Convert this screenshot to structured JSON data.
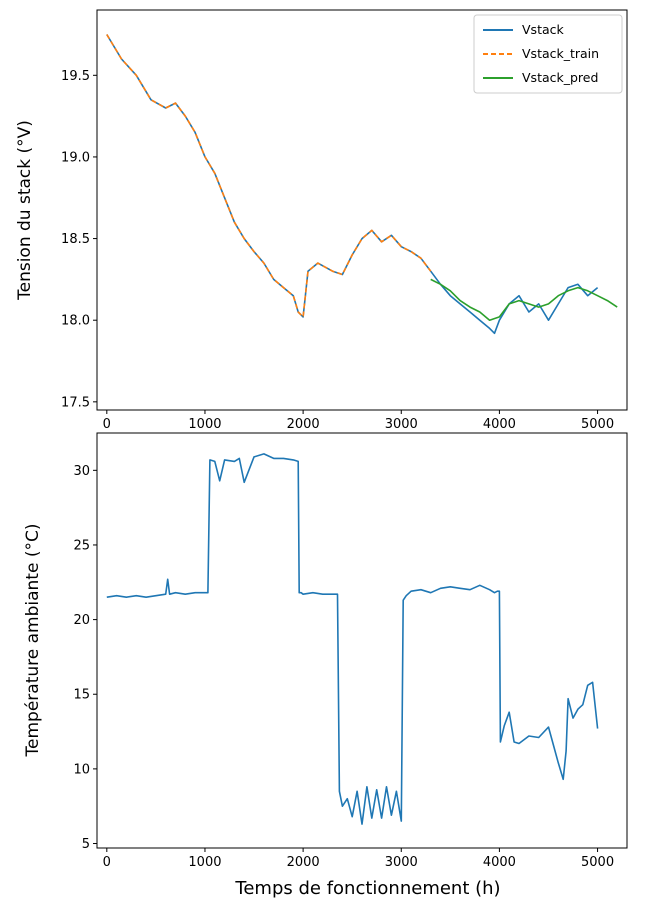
{
  "chart_data": [
    {
      "type": "line",
      "title": "",
      "xlabel": "",
      "ylabel": "Tension du stack (°V)",
      "xlim": [
        -100,
        5300
      ],
      "ylim": [
        17.45,
        19.9
      ],
      "xticks": [
        0,
        1000,
        2000,
        3000,
        4000,
        5000
      ],
      "yticks": [
        17.5,
        18.0,
        18.5,
        19.0,
        19.5
      ],
      "ytick_labels": [
        "17.5",
        "18.0",
        "18.5",
        "19.0",
        "19.5"
      ],
      "grid": false,
      "legend_position": "top-right",
      "series": [
        {
          "name": "Vstack",
          "color": "#1f77b4",
          "style": "solid",
          "x": [
            0,
            150,
            300,
            450,
            600,
            700,
            800,
            900,
            1000,
            1100,
            1200,
            1300,
            1400,
            1500,
            1600,
            1700,
            1800,
            1900,
            1950,
            2000,
            2050,
            2150,
            2300,
            2400,
            2500,
            2600,
            2700,
            2800,
            2900,
            3000,
            3100,
            3200,
            3300,
            3400,
            3500,
            3600,
            3700,
            3800,
            3900,
            3950,
            4000,
            4100,
            4200,
            4300,
            4400,
            4500,
            4600,
            4700,
            4800,
            4900,
            5000
          ],
          "values": [
            19.75,
            19.6,
            19.5,
            19.35,
            19.3,
            19.33,
            19.25,
            19.15,
            19.0,
            18.9,
            18.75,
            18.6,
            18.5,
            18.42,
            18.35,
            18.25,
            18.2,
            18.15,
            18.05,
            18.02,
            18.3,
            18.35,
            18.3,
            18.28,
            18.4,
            18.5,
            18.55,
            18.48,
            18.52,
            18.45,
            18.42,
            18.38,
            18.3,
            18.22,
            18.15,
            18.1,
            18.05,
            18.0,
            17.95,
            17.92,
            18.0,
            18.1,
            18.15,
            18.05,
            18.1,
            18.0,
            18.1,
            18.2,
            18.22,
            18.15,
            18.2
          ]
        },
        {
          "name": "Vstack_train",
          "color": "#ff7f0e",
          "style": "dashed",
          "x": [
            0,
            150,
            300,
            450,
            600,
            700,
            800,
            900,
            1000,
            1100,
            1200,
            1300,
            1400,
            1500,
            1600,
            1700,
            1800,
            1900,
            1950,
            2000,
            2050,
            2150,
            2300,
            2400,
            2500,
            2600,
            2700,
            2800,
            2900,
            3000,
            3100,
            3200,
            3300
          ],
          "values": [
            19.75,
            19.6,
            19.5,
            19.35,
            19.3,
            19.33,
            19.25,
            19.15,
            19.0,
            18.9,
            18.75,
            18.6,
            18.5,
            18.42,
            18.35,
            18.25,
            18.2,
            18.15,
            18.05,
            18.02,
            18.3,
            18.35,
            18.3,
            18.28,
            18.4,
            18.5,
            18.55,
            18.48,
            18.52,
            18.45,
            18.42,
            18.38,
            18.3
          ]
        },
        {
          "name": "Vstack_pred",
          "color": "#2ca02c",
          "style": "solid",
          "x": [
            3300,
            3400,
            3500,
            3600,
            3700,
            3800,
            3900,
            4000,
            4100,
            4200,
            4300,
            4400,
            4500,
            4600,
            4700,
            4800,
            4900,
            5000,
            5100,
            5200
          ],
          "values": [
            18.25,
            18.22,
            18.18,
            18.12,
            18.08,
            18.05,
            18.0,
            18.02,
            18.1,
            18.12,
            18.1,
            18.08,
            18.1,
            18.15,
            18.18,
            18.2,
            18.18,
            18.15,
            18.12,
            18.08
          ]
        }
      ]
    },
    {
      "type": "line",
      "title": "",
      "xlabel": "Temps de fonctionnement (h)",
      "ylabel": "Température ambiante (°C)",
      "xlim": [
        -100,
        5300
      ],
      "ylim": [
        4.7,
        32.5
      ],
      "xticks": [
        0,
        1000,
        2000,
        3000,
        4000,
        5000
      ],
      "yticks": [
        5,
        10,
        15,
        20,
        25,
        30
      ],
      "ytick_labels": [
        "5",
        "10",
        "15",
        "20",
        "25",
        "30"
      ],
      "grid": false,
      "series": [
        {
          "color": "#1f77b4",
          "style": "solid",
          "x": [
            0,
            100,
            200,
            300,
            400,
            500,
            600,
            620,
            640,
            700,
            800,
            900,
            1000,
            1030,
            1050,
            1100,
            1150,
            1200,
            1300,
            1350,
            1400,
            1500,
            1600,
            1700,
            1800,
            1900,
            1950,
            1960,
            1980,
            2000,
            2100,
            2200,
            2300,
            2350,
            2370,
            2400,
            2450,
            2500,
            2550,
            2600,
            2650,
            2700,
            2750,
            2800,
            2850,
            2900,
            2950,
            3000,
            3020,
            3050,
            3100,
            3200,
            3300,
            3400,
            3500,
            3600,
            3700,
            3800,
            3900,
            3950,
            3980,
            4000,
            4010,
            4050,
            4100,
            4150,
            4200,
            4300,
            4400,
            4500,
            4550,
            4600,
            4650,
            4680,
            4700,
            4750,
            4800,
            4850,
            4900,
            4950,
            5000
          ],
          "values": [
            21.5,
            21.6,
            21.5,
            21.6,
            21.5,
            21.6,
            21.7,
            22.7,
            21.7,
            21.8,
            21.7,
            21.8,
            21.8,
            21.8,
            30.7,
            30.6,
            29.3,
            30.7,
            30.6,
            30.8,
            29.2,
            30.9,
            31.1,
            30.8,
            30.8,
            30.7,
            30.6,
            21.8,
            21.8,
            21.7,
            21.8,
            21.7,
            21.7,
            21.7,
            8.5,
            7.5,
            8.0,
            6.8,
            8.5,
            6.3,
            8.8,
            6.7,
            8.6,
            6.7,
            8.8,
            6.9,
            8.5,
            6.5,
            21.3,
            21.6,
            21.9,
            22.0,
            21.8,
            22.1,
            22.2,
            22.1,
            22.0,
            22.3,
            22.0,
            21.8,
            21.9,
            21.9,
            11.8,
            12.9,
            13.8,
            11.8,
            11.7,
            12.2,
            12.1,
            12.8,
            11.6,
            10.4,
            9.3,
            11.2,
            14.7,
            13.4,
            14.0,
            14.3,
            15.6,
            15.8,
            12.7
          ]
        }
      ]
    }
  ]
}
